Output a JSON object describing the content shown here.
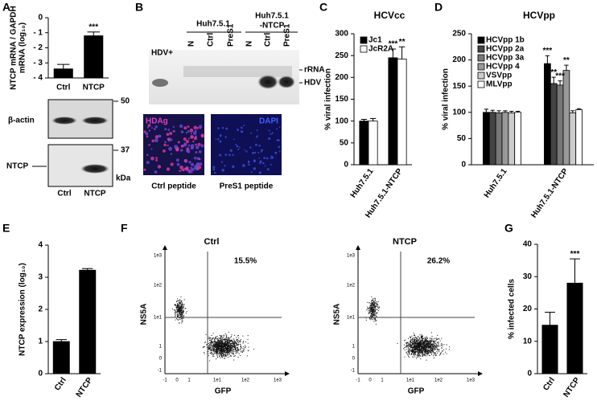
{
  "panels": {
    "labels": [
      "A",
      "B",
      "C",
      "D",
      "E",
      "F",
      "G"
    ],
    "A": {
      "blots": [
        "β-actin",
        "NTCP"
      ],
      "markers": [
        "50",
        "37",
        "kDa"
      ],
      "lanes": [
        "Ctrl",
        "NTCP"
      ]
    },
    "B": {
      "group_labels": [
        [
          "Huh7.5.1"
        ],
        [
          "Huh7.5.1",
          "-NTCP"
        ]
      ],
      "lanes": [
        "N",
        "Ctrl",
        "PreS1",
        "N",
        "Ctrl",
        "PreS1"
      ],
      "control": "HDV+",
      "bands": [
        "rRNA",
        "HDV"
      ],
      "stains": [
        "HDAg",
        "DAPI"
      ],
      "captions": [
        "Ctrl peptide",
        "PreS1 peptide"
      ]
    },
    "F": {
      "plots": [
        {
          "title": "Ctrl",
          "percent": "15.5%"
        },
        {
          "title": "NTCP",
          "percent": "26.2%"
        }
      ],
      "ylabel": "NS5A",
      "xlabel": "GFP",
      "yticks": [
        "1e3",
        "1e2",
        "1e1",
        "1",
        "0",
        "-1"
      ],
      "xticks": [
        "-1",
        "0",
        "1",
        "1e1",
        "1e2",
        "1e3"
      ]
    }
  },
  "chart_data": [
    {
      "type": "bar",
      "ylabel": [
        "NTCP mRNA / GAPDH",
        "mRNA (log₁₀)"
      ],
      "categories": [
        "Ctrl",
        "NTCP"
      ],
      "values": [
        -3.4,
        -1.2
      ],
      "errors": [
        0.3,
        0.25
      ],
      "color": "#000000",
      "ylim": [
        -4,
        0
      ],
      "yticks": [
        0,
        {
          "value": -1,
          "label": "- 1"
        },
        {
          "value": -2,
          "label": "- 2"
        },
        {
          "value": -3,
          "label": "- 3"
        },
        {
          "value": -4,
          "label": "- 4"
        }
      ],
      "annotations": [
        "***"
      ]
    },
    {
      "type": "bar",
      "title": "HCVcc",
      "ylabel": [
        "% viral infection"
      ],
      "categories": [
        "Huh7.5.1",
        "Huh7.5.1-NTCP"
      ],
      "series": [
        {
          "name": "Jc1",
          "color": "#000000",
          "values": [
            100,
            245
          ],
          "errors": [
            4,
            20
          ]
        },
        {
          "name": "JcR2A",
          "color": "#ffffff",
          "values": [
            100,
            242
          ],
          "errors": [
            6,
            28
          ]
        }
      ],
      "ylim": [
        0,
        300
      ],
      "yticks": [
        0,
        50,
        100,
        150,
        200,
        250,
        300
      ],
      "legend": "upper left",
      "annotations": [
        "***",
        "**"
      ]
    },
    {
      "type": "bar",
      "title": "HCVpp",
      "ylabel": [
        "% viral infection"
      ],
      "categories": [
        "Huh7.5.1",
        "Huh7.5.1-NTCP"
      ],
      "series": [
        {
          "name": "HCVpp 1b",
          "color": "#000000",
          "values": [
            100,
            193
          ],
          "errors": [
            6,
            15
          ]
        },
        {
          "name": "HCVpp 2a",
          "color": "#444444",
          "values": [
            100,
            155
          ],
          "errors": [
            4,
            12
          ]
        },
        {
          "name": "HCVpp 3a",
          "color": "#777777",
          "values": [
            99,
            152
          ],
          "errors": [
            4,
            8
          ]
        },
        {
          "name": "HCVpp 4",
          "color": "#999999",
          "values": [
            100,
            180
          ],
          "errors": [
            3,
            10
          ]
        },
        {
          "name": "VSVpp",
          "color": "#cccccc",
          "values": [
            99,
            99
          ],
          "errors": [
            3,
            4
          ]
        },
        {
          "name": "MLVpp",
          "color": "#ffffff",
          "values": [
            100,
            105
          ],
          "errors": [
            2,
            2
          ]
        }
      ],
      "ylim": [
        0,
        250
      ],
      "yticks": [
        0,
        50,
        100,
        150,
        200,
        250
      ],
      "legend": "upper left",
      "annotations": [
        "***",
        "**",
        "***",
        "**"
      ]
    },
    {
      "type": "bar",
      "ylabel": [
        "NTCP expression (log₁₀)"
      ],
      "categories": [
        "Ctrl",
        "NTCP"
      ],
      "values": [
        1.0,
        3.22
      ],
      "errors": [
        0.06,
        0.05
      ],
      "color": "#000000",
      "ylim": [
        0,
        4
      ],
      "yticks": [
        0,
        1,
        2,
        3,
        4
      ],
      "annotations": []
    },
    {
      "type": "bar",
      "ylabel": [
        "% infected cells"
      ],
      "categories": [
        "Ctrl",
        "NTCP"
      ],
      "values": [
        15,
        28
      ],
      "errors": [
        4,
        7.5
      ],
      "color": "#000000",
      "ylim": [
        0,
        40
      ],
      "yticks": [
        0,
        10,
        20,
        30,
        40
      ],
      "annotations": [
        "***"
      ]
    }
  ]
}
